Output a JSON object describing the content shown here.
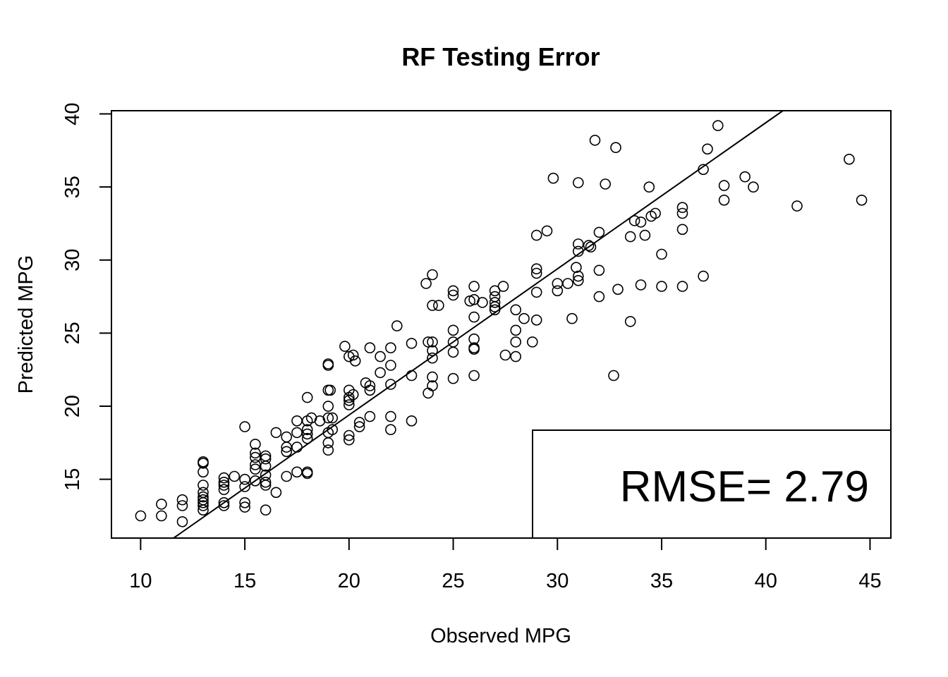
{
  "chart_data": {
    "type": "scatter",
    "title": "RF Testing Error",
    "xlabel": "Observed MPG",
    "ylabel": "Predicted MPG",
    "xlim": [
      8.6,
      46.0
    ],
    "ylim": [
      10.98,
      40.22
    ],
    "xticks": [
      10,
      15,
      20,
      25,
      30,
      35,
      40,
      45
    ],
    "yticks": [
      15,
      20,
      25,
      30,
      35,
      40
    ],
    "reference_line": {
      "intercept": -0.6,
      "slope": 1.0
    },
    "legend": {
      "text": "RMSE= 2.79",
      "position": "bottom-right"
    },
    "series": [
      {
        "name": "observations",
        "points": [
          [
            10,
            12.5
          ],
          [
            11,
            12.5
          ],
          [
            11,
            13.3
          ],
          [
            12,
            12.1
          ],
          [
            12,
            13.2
          ],
          [
            12,
            13.6
          ],
          [
            13,
            12.9
          ],
          [
            13,
            13.2
          ],
          [
            13,
            13.4
          ],
          [
            13,
            13.6
          ],
          [
            13,
            13.8
          ],
          [
            13,
            14.1
          ],
          [
            13,
            14.6
          ],
          [
            13,
            15.5
          ],
          [
            13,
            16.1
          ],
          [
            13,
            16.2
          ],
          [
            14,
            13.2
          ],
          [
            14,
            13.4
          ],
          [
            14,
            14.3
          ],
          [
            14,
            14.6
          ],
          [
            14,
            14.8
          ],
          [
            14,
            15.1
          ],
          [
            14.5,
            15.2
          ],
          [
            15,
            13.1
          ],
          [
            15,
            13.4
          ],
          [
            15,
            14.5
          ],
          [
            15,
            15
          ],
          [
            15,
            18.6
          ],
          [
            15.5,
            14.9
          ],
          [
            15.5,
            15.7
          ],
          [
            15.5,
            16
          ],
          [
            15.5,
            16.5
          ],
          [
            15.5,
            16.8
          ],
          [
            15.5,
            17.4
          ],
          [
            16,
            12.9
          ],
          [
            16,
            14.6
          ],
          [
            16,
            14.8
          ],
          [
            16,
            15.3
          ],
          [
            16,
            15.9
          ],
          [
            16,
            16.4
          ],
          [
            16,
            16.6
          ],
          [
            16.5,
            14.1
          ],
          [
            16.5,
            18.2
          ],
          [
            17,
            15.2
          ],
          [
            17,
            16.9
          ],
          [
            17,
            17.2
          ],
          [
            17,
            17.9
          ],
          [
            17.5,
            15.5
          ],
          [
            17.5,
            17.2
          ],
          [
            17.5,
            18.2
          ],
          [
            17.5,
            19
          ],
          [
            18,
            15.4
          ],
          [
            18,
            15.5
          ],
          [
            18,
            17.8
          ],
          [
            18,
            18.1
          ],
          [
            18,
            18.4
          ],
          [
            18,
            19
          ],
          [
            18,
            20.6
          ],
          [
            18.2,
            19.2
          ],
          [
            18.6,
            19
          ],
          [
            19,
            17
          ],
          [
            19,
            17.5
          ],
          [
            19,
            18.2
          ],
          [
            19,
            19.2
          ],
          [
            19,
            20
          ],
          [
            19,
            21.1
          ],
          [
            19,
            22.8
          ],
          [
            19,
            22.9
          ],
          [
            19.1,
            21.1
          ],
          [
            19.2,
            18.4
          ],
          [
            19.2,
            19.2
          ],
          [
            19.8,
            24.1
          ],
          [
            20,
            17.7
          ],
          [
            20,
            18
          ],
          [
            20,
            20.1
          ],
          [
            20,
            20.4
          ],
          [
            20,
            20.6
          ],
          [
            20,
            21.1
          ],
          [
            20,
            23.4
          ],
          [
            20.2,
            23.5
          ],
          [
            20.2,
            20.8
          ],
          [
            20.3,
            23.1
          ],
          [
            20.5,
            18.6
          ],
          [
            20.5,
            18.9
          ],
          [
            20.8,
            21.6
          ],
          [
            21,
            19.3
          ],
          [
            21,
            21.1
          ],
          [
            21,
            21.4
          ],
          [
            21,
            24
          ],
          [
            21.5,
            23.4
          ],
          [
            21.5,
            22.3
          ],
          [
            22,
            18.4
          ],
          [
            22,
            19.3
          ],
          [
            22,
            21.5
          ],
          [
            22,
            22.8
          ],
          [
            22,
            24
          ],
          [
            22.3,
            25.5
          ],
          [
            23,
            19
          ],
          [
            23,
            22.1
          ],
          [
            23,
            24.3
          ],
          [
            23.7,
            28.4
          ],
          [
            23.8,
            20.9
          ],
          [
            23.8,
            24.4
          ],
          [
            24,
            22
          ],
          [
            24,
            23.3
          ],
          [
            24,
            23.8
          ],
          [
            24,
            24.4
          ],
          [
            24,
            26.9
          ],
          [
            24,
            29
          ],
          [
            24.3,
            26.9
          ],
          [
            24,
            21.4
          ],
          [
            25,
            21.9
          ],
          [
            25,
            23.7
          ],
          [
            25,
            24.4
          ],
          [
            25,
            25.2
          ],
          [
            25,
            27.6
          ],
          [
            25,
            27.9
          ],
          [
            25.8,
            27.2
          ],
          [
            26,
            22.1
          ],
          [
            26,
            23.9
          ],
          [
            26,
            24
          ],
          [
            26,
            24.6
          ],
          [
            26,
            26.1
          ],
          [
            26,
            27.3
          ],
          [
            26,
            28.2
          ],
          [
            26.4,
            27.1
          ],
          [
            27,
            26.6
          ],
          [
            27,
            26.8
          ],
          [
            27,
            27.1
          ],
          [
            27,
            27.5
          ],
          [
            27,
            27.9
          ],
          [
            27.4,
            28.2
          ],
          [
            27.5,
            23.5
          ],
          [
            28,
            23.4
          ],
          [
            28,
            24.4
          ],
          [
            28,
            25.2
          ],
          [
            28,
            26.6
          ],
          [
            28.4,
            26
          ],
          [
            28.8,
            24.4
          ],
          [
            29,
            25.9
          ],
          [
            29,
            27.8
          ],
          [
            29,
            29.1
          ],
          [
            29,
            29.4
          ],
          [
            29,
            31.7
          ],
          [
            29.5,
            32
          ],
          [
            29.8,
            35.6
          ],
          [
            30,
            27.9
          ],
          [
            30,
            28.4
          ],
          [
            30.5,
            28.4
          ],
          [
            30.7,
            26
          ],
          [
            30.9,
            29.5
          ],
          [
            31,
            28.6
          ],
          [
            31,
            28.9
          ],
          [
            31,
            30.6
          ],
          [
            31,
            31.1
          ],
          [
            31,
            35.3
          ],
          [
            31.5,
            31
          ],
          [
            31.6,
            30.9
          ],
          [
            31.8,
            38.2
          ],
          [
            32,
            27.5
          ],
          [
            32,
            29.3
          ],
          [
            32,
            31.9
          ],
          [
            32.3,
            35.2
          ],
          [
            32.7,
            22.1
          ],
          [
            32.8,
            37.7
          ],
          [
            32.9,
            28
          ],
          [
            33.5,
            25.8
          ],
          [
            33.5,
            31.6
          ],
          [
            33.7,
            32.7
          ],
          [
            34,
            28.3
          ],
          [
            34,
            32.6
          ],
          [
            34.2,
            31.7
          ],
          [
            34.4,
            35
          ],
          [
            34.5,
            33
          ],
          [
            34.7,
            33.2
          ],
          [
            35,
            28.2
          ],
          [
            35,
            30.4
          ],
          [
            36,
            28.2
          ],
          [
            36,
            32.1
          ],
          [
            36,
            33.2
          ],
          [
            36,
            33.6
          ],
          [
            37,
            28.9
          ],
          [
            37,
            36.2
          ],
          [
            37.2,
            37.6
          ],
          [
            37.7,
            39.2
          ],
          [
            38,
            34.1
          ],
          [
            38,
            35.1
          ],
          [
            39,
            35.7
          ],
          [
            39.4,
            35
          ],
          [
            41.5,
            33.7
          ],
          [
            44,
            36.9
          ],
          [
            44.6,
            34.1
          ]
        ]
      }
    ]
  }
}
